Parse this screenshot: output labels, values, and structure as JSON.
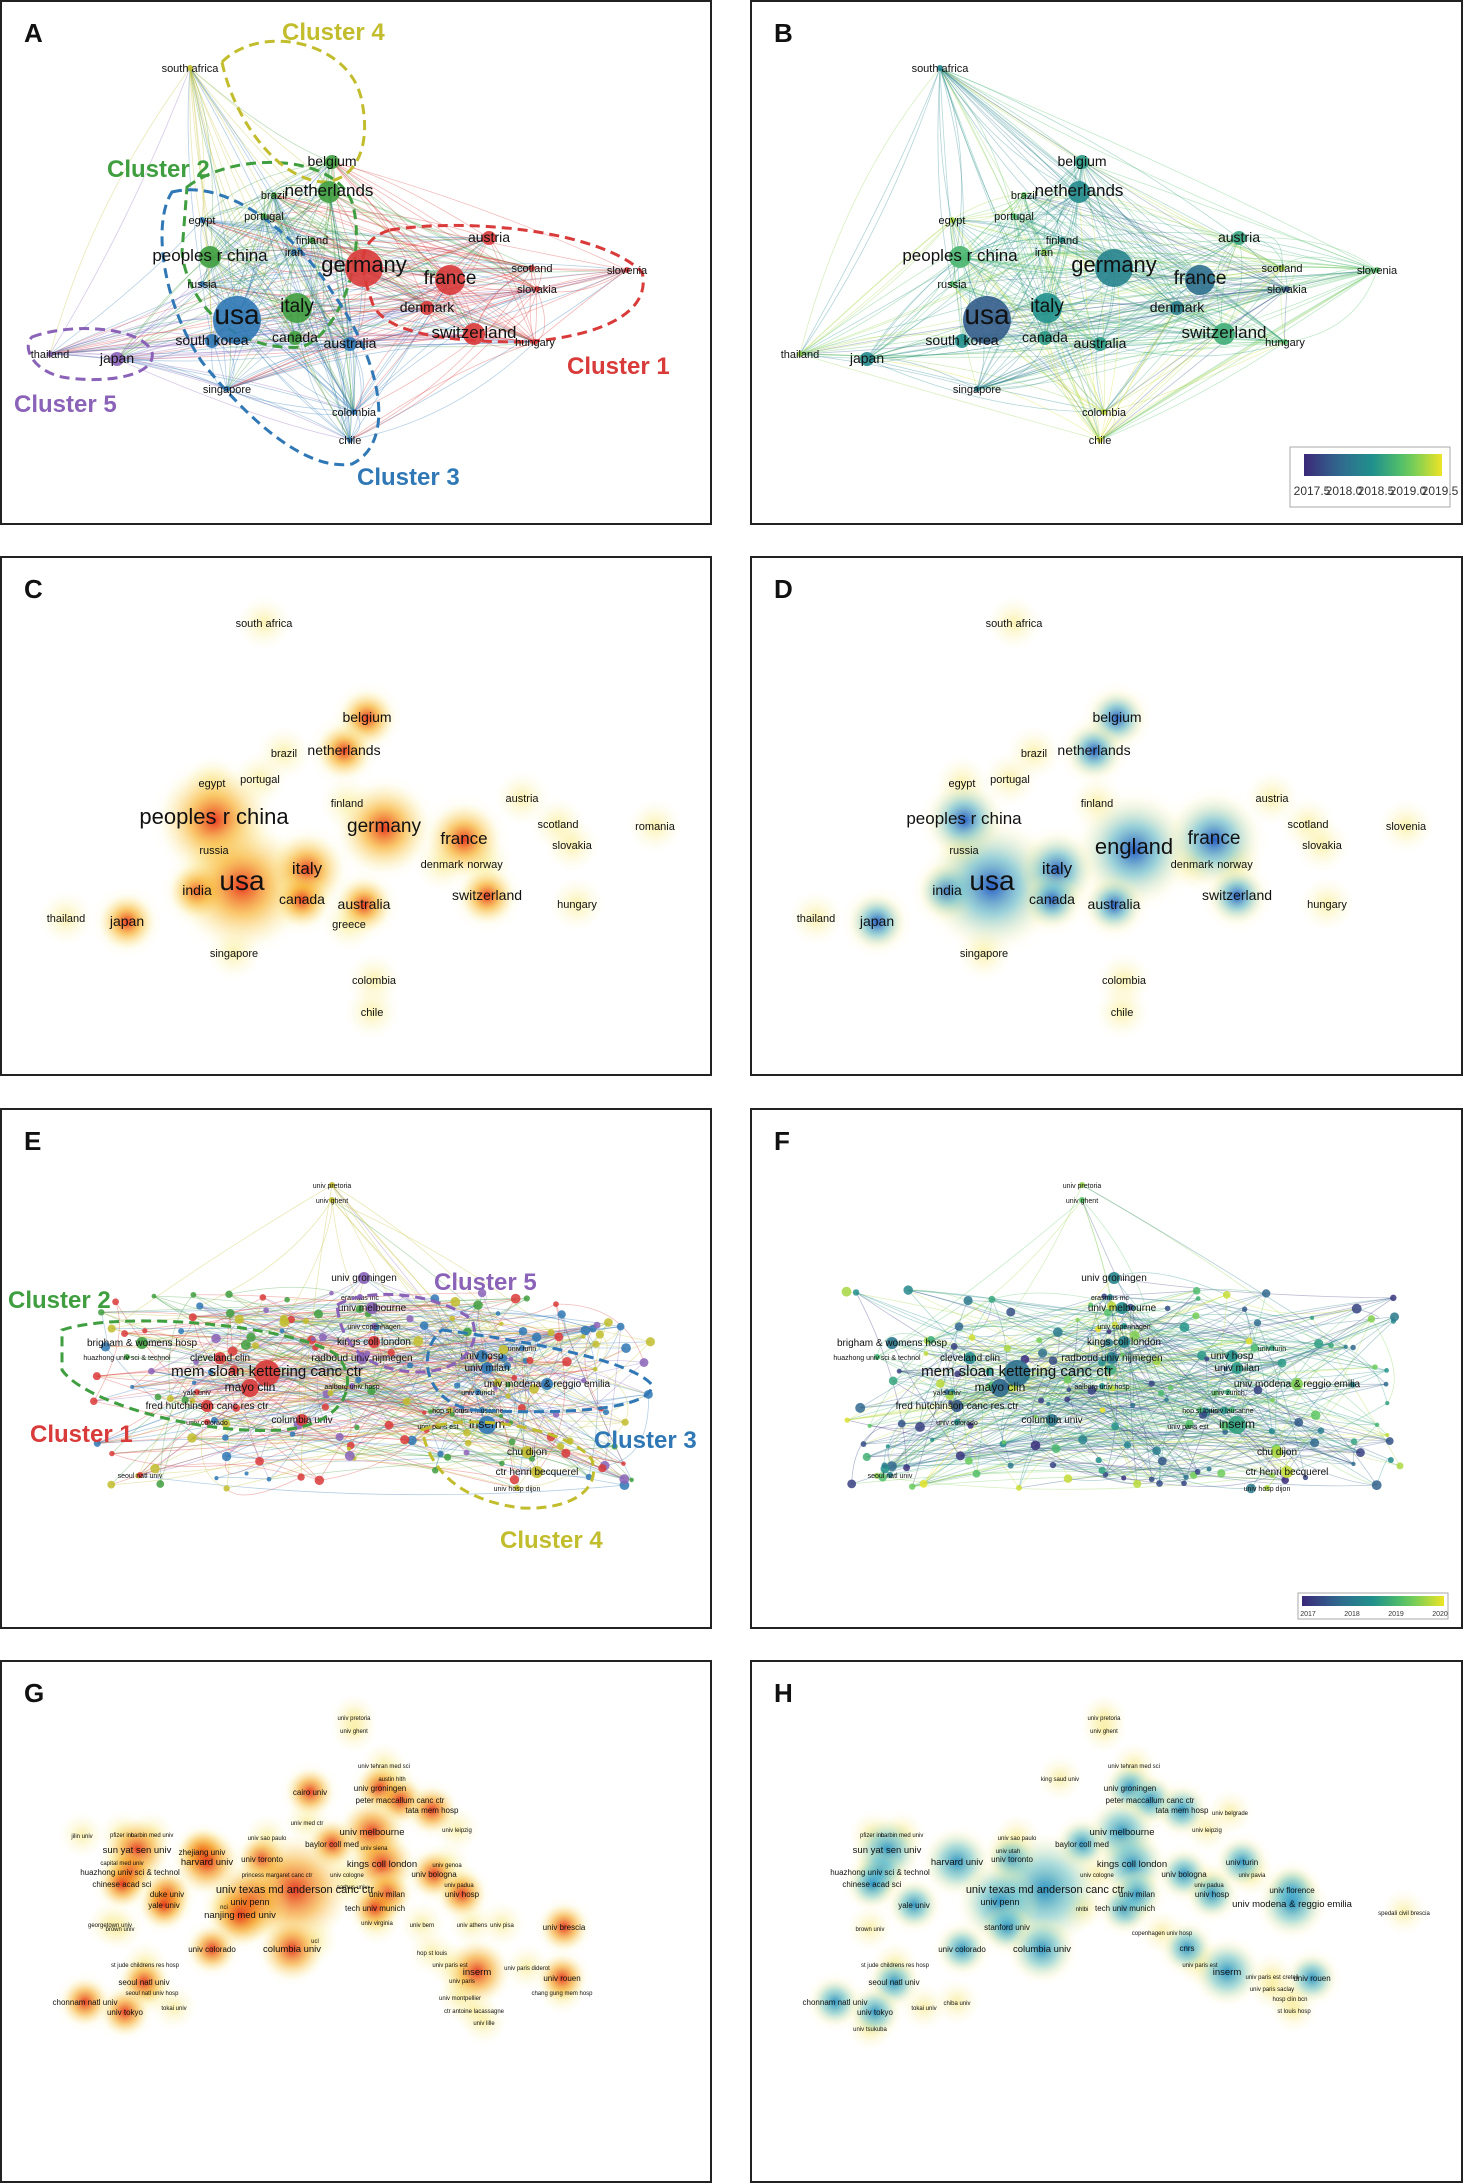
{
  "panels": {
    "A": {
      "label": "A",
      "clusters": [
        "Cluster 1",
        "Cluster 2",
        "Cluster 3",
        "Cluster 4",
        "Cluster 5"
      ]
    },
    "B": {
      "label": "B",
      "colorbar_ticks": [
        "2017.5",
        "2018.0",
        "2018.5",
        "2019.0",
        "2019.5"
      ]
    },
    "C": {
      "label": "C"
    },
    "D": {
      "label": "D"
    },
    "E": {
      "label": "E",
      "clusters": [
        "Cluster 1",
        "Cluster 2",
        "Cluster 3",
        "Cluster 4",
        "Cluster 5"
      ]
    },
    "F": {
      "label": "F",
      "colorbar_ticks": [
        "2017",
        "2018",
        "2019",
        "2020"
      ]
    },
    "G": {
      "label": "G"
    },
    "H": {
      "label": "H"
    }
  },
  "colors": {
    "cluster1": "#d93a3a",
    "cluster2": "#3f9e3f",
    "cluster3": "#2f78b5",
    "cluster4": "#c2bd2d",
    "cluster5": "#8a63b8"
  },
  "country_nodes_AB": [
    {
      "name": "south africa",
      "c": 4,
      "y": 2018.3,
      "s": 1
    },
    {
      "name": "belgium",
      "c": 2,
      "y": 2018.6,
      "s": 2
    },
    {
      "name": "brazil",
      "c": 2,
      "y": 2019.1,
      "s": 1
    },
    {
      "name": "netherlands",
      "c": 2,
      "y": 2018.4,
      "s": 3
    },
    {
      "name": "egypt",
      "c": 3,
      "y": 2019.4,
      "s": 1
    },
    {
      "name": "portugal",
      "c": 2,
      "y": 2019.0,
      "s": 1
    },
    {
      "name": "finland",
      "c": 2,
      "y": 2018.5,
      "s": 1
    },
    {
      "name": "iran",
      "c": 3,
      "y": 2019.3,
      "s": 1
    },
    {
      "name": "peoples r china",
      "c": 2,
      "y": 2018.9,
      "s": 3
    },
    {
      "name": "germany",
      "c": 1,
      "y": 2018.3,
      "s": 5
    },
    {
      "name": "austria",
      "c": 1,
      "y": 2018.7,
      "s": 2
    },
    {
      "name": "russia",
      "c": 3,
      "y": 2019.0,
      "s": 1
    },
    {
      "name": "france",
      "c": 1,
      "y": 2018.0,
      "s": 4
    },
    {
      "name": "scotland",
      "c": 1,
      "y": 2019.4,
      "s": 1
    },
    {
      "name": "slovenia",
      "c": 1,
      "y": 2019.0,
      "s": 1
    },
    {
      "name": "slovakia",
      "c": 1,
      "y": 2017.7,
      "s": 1
    },
    {
      "name": "usa",
      "c": 3,
      "y": 2017.8,
      "s": 6
    },
    {
      "name": "italy",
      "c": 2,
      "y": 2018.5,
      "s": 4
    },
    {
      "name": "denmark",
      "c": 1,
      "y": 2018.2,
      "s": 2
    },
    {
      "name": "canada",
      "c": 2,
      "y": 2018.6,
      "s": 2
    },
    {
      "name": "switzerland",
      "c": 1,
      "y": 2018.8,
      "s": 3
    },
    {
      "name": "hungary",
      "c": 1,
      "y": 2019.0,
      "s": 1
    },
    {
      "name": "thailand",
      "c": 5,
      "y": 2019.3,
      "s": 1
    },
    {
      "name": "japan",
      "c": 5,
      "y": 2018.4,
      "s": 2
    },
    {
      "name": "south korea",
      "c": 3,
      "y": 2018.5,
      "s": 2
    },
    {
      "name": "australia",
      "c": 3,
      "y": 2018.6,
      "s": 2
    },
    {
      "name": "singapore",
      "c": 3,
      "y": 2018.2,
      "s": 1
    },
    {
      "name": "colombia",
      "c": 3,
      "y": 2019.5,
      "s": 1
    },
    {
      "name": "chile",
      "c": 3,
      "y": 2019.6,
      "s": 1
    }
  ],
  "country_density_C": [
    {
      "name": "south africa",
      "d": 1
    },
    {
      "name": "belgium",
      "d": 2
    },
    {
      "name": "brazil",
      "d": 1
    },
    {
      "name": "netherlands",
      "d": 2
    },
    {
      "name": "egypt",
      "d": 1
    },
    {
      "name": "portugal",
      "d": 1
    },
    {
      "name": "finland",
      "d": 1
    },
    {
      "name": "peoples r china",
      "d": 5
    },
    {
      "name": "russia",
      "d": 1
    },
    {
      "name": "germany",
      "d": 4
    },
    {
      "name": "austria",
      "d": 1
    },
    {
      "name": "france",
      "d": 3
    },
    {
      "name": "scotland",
      "d": 1
    },
    {
      "name": "romania",
      "d": 1
    },
    {
      "name": "slovakia",
      "d": 1
    },
    {
      "name": "india",
      "d": 2
    },
    {
      "name": "usa",
      "d": 6
    },
    {
      "name": "italy",
      "d": 3
    },
    {
      "name": "denmark",
      "d": 1
    },
    {
      "name": "norway",
      "d": 1
    },
    {
      "name": "canada",
      "d": 2
    },
    {
      "name": "australia",
      "d": 2
    },
    {
      "name": "greece",
      "d": 1
    },
    {
      "name": "switzerland",
      "d": 2
    },
    {
      "name": "hungary",
      "d": 1
    },
    {
      "name": "thailand",
      "d": 1
    },
    {
      "name": "japan",
      "d": 2
    },
    {
      "name": "singapore",
      "d": 1
    },
    {
      "name": "colombia",
      "d": 1
    },
    {
      "name": "chile",
      "d": 1
    }
  ],
  "country_density_D": [
    {
      "name": "south africa",
      "d": 1
    },
    {
      "name": "belgium",
      "d": 2
    },
    {
      "name": "brazil",
      "d": 1
    },
    {
      "name": "netherlands",
      "d": 2
    },
    {
      "name": "egypt",
      "d": 1
    },
    {
      "name": "portugal",
      "d": 1
    },
    {
      "name": "finland",
      "d": 1
    },
    {
      "name": "peoples r china",
      "d": 3
    },
    {
      "name": "russia",
      "d": 1
    },
    {
      "name": "england",
      "d": 5
    },
    {
      "name": "austria",
      "d": 1
    },
    {
      "name": "france",
      "d": 4
    },
    {
      "name": "scotland",
      "d": 1
    },
    {
      "name": "slovenia",
      "d": 1
    },
    {
      "name": "slovakia",
      "d": 1
    },
    {
      "name": "india",
      "d": 2
    },
    {
      "name": "usa",
      "d": 6
    },
    {
      "name": "italy",
      "d": 3
    },
    {
      "name": "denmark",
      "d": 1
    },
    {
      "name": "norway",
      "d": 1
    },
    {
      "name": "canada",
      "d": 2
    },
    {
      "name": "australia",
      "d": 2
    },
    {
      "name": "switzerland",
      "d": 2
    },
    {
      "name": "hungary",
      "d": 1
    },
    {
      "name": "thailand",
      "d": 1
    },
    {
      "name": "japan",
      "d": 2
    },
    {
      "name": "singapore",
      "d": 1
    },
    {
      "name": "colombia",
      "d": 1
    },
    {
      "name": "chile",
      "d": 1
    }
  ],
  "institutions_EF": [
    {
      "name": "univ pretoria",
      "c": 4,
      "y": 2019.5,
      "s": 1
    },
    {
      "name": "univ ghent",
      "c": 4,
      "y": 2019.2,
      "s": 1
    },
    {
      "name": "univ groningen",
      "c": 5,
      "y": 2018.4,
      "s": 2
    },
    {
      "name": "erasmus mc",
      "c": 5,
      "y": 2018.3,
      "s": 1
    },
    {
      "name": "univ melbourne",
      "c": 5,
      "y": 2018.5,
      "s": 2
    },
    {
      "name": "univ copenhagen",
      "c": 5,
      "y": 2018.6,
      "s": 1
    },
    {
      "name": "kings coll london",
      "c": 1,
      "y": 2018.4,
      "s": 2
    },
    {
      "name": "brigham & womens hosp",
      "c": 2,
      "y": 2018.2,
      "s": 2
    },
    {
      "name": "huazhong univ sci & technol",
      "c": 2,
      "y": 2019.0,
      "s": 1
    },
    {
      "name": "cleveland clin",
      "c": 1,
      "y": 2018.5,
      "s": 2
    },
    {
      "name": "radboud univ nijmegen",
      "c": 5,
      "y": 2018.3,
      "s": 2
    },
    {
      "name": "univ hosp",
      "c": 3,
      "y": 2018.6,
      "s": 2
    },
    {
      "name": "univ turin",
      "c": 3,
      "y": 2018.8,
      "s": 1
    },
    {
      "name": "univ milan",
      "c": 3,
      "y": 2018.7,
      "s": 2
    },
    {
      "name": "mem sloan kettering canc ctr",
      "c": 1,
      "y": 2018.1,
      "s": 4
    },
    {
      "name": "mayo clin",
      "c": 1,
      "y": 2018.0,
      "s": 3
    },
    {
      "name": "aalborg univ hosp",
      "c": 5,
      "y": 2018.6,
      "s": 1
    },
    {
      "name": "univ modena & reggio emilia",
      "c": 3,
      "y": 2019.4,
      "s": 2
    },
    {
      "name": "univ zurich",
      "c": 3,
      "y": 2018.9,
      "s": 1
    },
    {
      "name": "fred hutchinson canc res ctr",
      "c": 1,
      "y": 2017.8,
      "s": 2
    },
    {
      "name": "columbia univ",
      "c": 1,
      "y": 2018.2,
      "s": 2
    },
    {
      "name": "hop st louis",
      "c": 4,
      "y": 2019.0,
      "s": 1
    },
    {
      "name": "univ lausanne",
      "c": 3,
      "y": 2019.0,
      "s": 1
    },
    {
      "name": "univ paris est",
      "c": 4,
      "y": 2019.1,
      "s": 1
    },
    {
      "name": "inserm",
      "c": 3,
      "y": 2018.8,
      "s": 3
    },
    {
      "name": "chu dijon",
      "c": 4,
      "y": 2019.6,
      "s": 2
    },
    {
      "name": "ctr henri becquerel",
      "c": 4,
      "y": 2019.7,
      "s": 2
    },
    {
      "name": "univ hosp dijon",
      "c": 4,
      "y": 2019.6,
      "s": 1
    },
    {
      "name": "yale univ",
      "c": 1,
      "y": 2017.9,
      "s": 1
    },
    {
      "name": "seoul natl univ",
      "c": 1,
      "y": 2018.4,
      "s": 1
    },
    {
      "name": "univ colorado",
      "c": 1,
      "y": 2018.6,
      "s": 1
    }
  ],
  "institutions_G": [
    {
      "name": "univ pretoria",
      "d": 1
    },
    {
      "name": "univ ghent",
      "d": 1
    },
    {
      "name": "univ tehran med sci",
      "d": 1
    },
    {
      "name": "austin hlth",
      "d": 1
    },
    {
      "name": "cairo univ",
      "d": 2
    },
    {
      "name": "univ groningen",
      "d": 2
    },
    {
      "name": "peter maccallum canc ctr",
      "d": 2
    },
    {
      "name": "tata mem hosp",
      "d": 2
    },
    {
      "name": "univ med ctr",
      "d": 1
    },
    {
      "name": "univ leipzig",
      "d": 1
    },
    {
      "name": "jilin univ",
      "d": 1
    },
    {
      "name": "pfizer inc",
      "d": 1
    },
    {
      "name": "harbin med univ",
      "d": 1
    },
    {
      "name": "univ sao paulo",
      "d": 1
    },
    {
      "name": "univ melbourne",
      "d": 3
    },
    {
      "name": "baylor coll med",
      "d": 2
    },
    {
      "name": "univ siena",
      "d": 1
    },
    {
      "name": "sun yat sen univ",
      "d": 3
    },
    {
      "name": "zhejiang univ",
      "d": 2
    },
    {
      "name": "univ toronto",
      "d": 2
    },
    {
      "name": "capital med univ",
      "d": 1
    },
    {
      "name": "harvard univ",
      "d": 3
    },
    {
      "name": "kings coll london",
      "d": 3
    },
    {
      "name": "univ bologna",
      "d": 2
    },
    {
      "name": "univ genoa",
      "d": 1
    },
    {
      "name": "huazhong univ sci & technol",
      "d": 2
    },
    {
      "name": "univ padua",
      "d": 1
    },
    {
      "name": "chinese acad sci",
      "d": 2
    },
    {
      "name": "princess margaret canc ctr",
      "d": 1
    },
    {
      "name": "univ cologne",
      "d": 1
    },
    {
      "name": "aarhus univ",
      "d": 1
    },
    {
      "name": "univ milan",
      "d": 2
    },
    {
      "name": "univ texas md anderson canc ctr",
      "d": 6
    },
    {
      "name": "univ hosp",
      "d": 2
    },
    {
      "name": "duke univ",
      "d": 2
    },
    {
      "name": "univ penn",
      "d": 4
    },
    {
      "name": "nci",
      "d": 1
    },
    {
      "name": "tech univ munich",
      "d": 2
    },
    {
      "name": "yale univ",
      "d": 2
    },
    {
      "name": "nanjing med univ",
      "d": 3
    },
    {
      "name": "univ virginia",
      "d": 1
    },
    {
      "name": "univ bern",
      "d": 1
    },
    {
      "name": "univ athens",
      "d": 1
    },
    {
      "name": "univ pisa",
      "d": 1
    },
    {
      "name": "univ brescia",
      "d": 2
    },
    {
      "name": "georgetown univ",
      "d": 1
    },
    {
      "name": "brown univ",
      "d": 1
    },
    {
      "name": "ucl",
      "d": 1
    },
    {
      "name": "hop st louis",
      "d": 1
    },
    {
      "name": "univ colorado",
      "d": 2
    },
    {
      "name": "columbia univ",
      "d": 3
    },
    {
      "name": "univ paris est",
      "d": 1
    },
    {
      "name": "inserm",
      "d": 3
    },
    {
      "name": "univ paris",
      "d": 1
    },
    {
      "name": "st jude childrens res hosp",
      "d": 1
    },
    {
      "name": "univ paris diderot",
      "d": 1
    },
    {
      "name": "univ rouen",
      "d": 2
    },
    {
      "name": "seoul natl univ",
      "d": 2
    },
    {
      "name": "seoul natl univ hosp",
      "d": 1
    },
    {
      "name": "chonnam natl univ",
      "d": 2
    },
    {
      "name": "univ tokyo",
      "d": 2
    },
    {
      "name": "tokai univ",
      "d": 1
    },
    {
      "name": "univ montpellier",
      "d": 1
    },
    {
      "name": "chang gung mem hosp",
      "d": 1
    },
    {
      "name": "ctr antoine lacassagne",
      "d": 1
    },
    {
      "name": "univ lille",
      "d": 1
    }
  ],
  "institutions_H": [
    {
      "name": "univ pretoria",
      "d": 1
    },
    {
      "name": "univ ghent",
      "d": 1
    },
    {
      "name": "univ tehran med sci",
      "d": 1
    },
    {
      "name": "king saud univ",
      "d": 1
    },
    {
      "name": "univ groningen",
      "d": 2
    },
    {
      "name": "peter maccallum canc ctr",
      "d": 2
    },
    {
      "name": "tata mem hosp",
      "d": 2
    },
    {
      "name": "univ belgrade",
      "d": 1
    },
    {
      "name": "univ leipzig",
      "d": 1
    },
    {
      "name": "pfizer inc",
      "d": 1
    },
    {
      "name": "harbin med univ",
      "d": 1
    },
    {
      "name": "univ sao paulo",
      "d": 1
    },
    {
      "name": "univ melbourne",
      "d": 3
    },
    {
      "name": "baylor coll med",
      "d": 2
    },
    {
      "name": "sun yat sen univ",
      "d": 3
    },
    {
      "name": "univ utah",
      "d": 1
    },
    {
      "name": "univ toronto",
      "d": 2
    },
    {
      "name": "harvard univ",
      "d": 3
    },
    {
      "name": "kings coll london",
      "d": 3
    },
    {
      "name": "univ turin",
      "d": 2
    },
    {
      "name": "univ pavia",
      "d": 1
    },
    {
      "name": "huazhong univ sci & technol",
      "d": 2
    },
    {
      "name": "univ padua",
      "d": 1
    },
    {
      "name": "chinese acad sci",
      "d": 2
    },
    {
      "name": "univ cologne",
      "d": 1
    },
    {
      "name": "univ bologna",
      "d": 2
    },
    {
      "name": "univ florence",
      "d": 2
    },
    {
      "name": "univ texas md anderson canc ctr",
      "d": 6
    },
    {
      "name": "univ hosp",
      "d": 2
    },
    {
      "name": "univ modena & reggio emilia",
      "d": 3
    },
    {
      "name": "yale univ",
      "d": 2
    },
    {
      "name": "univ penn",
      "d": 4
    },
    {
      "name": "nhlbi",
      "d": 1
    },
    {
      "name": "tech univ munich",
      "d": 2
    },
    {
      "name": "univ milan",
      "d": 2
    },
    {
      "name": "stanford univ",
      "d": 2
    },
    {
      "name": "brown univ",
      "d": 1
    },
    {
      "name": "copenhagen univ hosp",
      "d": 1
    },
    {
      "name": "cnrs",
      "d": 2
    },
    {
      "name": "spedali civil brescia",
      "d": 1
    },
    {
      "name": "univ colorado",
      "d": 2
    },
    {
      "name": "columbia univ",
      "d": 3
    },
    {
      "name": "univ paris est",
      "d": 1
    },
    {
      "name": "inserm",
      "d": 3
    },
    {
      "name": "univ paris est creteil",
      "d": 1
    },
    {
      "name": "univ paris saclay",
      "d": 1
    },
    {
      "name": "univ rouen",
      "d": 2
    },
    {
      "name": "st jude childrens res hosp",
      "d": 1
    },
    {
      "name": "hosp clin bcn",
      "d": 1
    },
    {
      "name": "st louis hosp",
      "d": 1
    },
    {
      "name": "seoul natl univ",
      "d": 2
    },
    {
      "name": "chonnam natl univ",
      "d": 2
    },
    {
      "name": "univ tokyo",
      "d": 2
    },
    {
      "name": "univ tsukuba",
      "d": 1
    },
    {
      "name": "tokai univ",
      "d": 1
    },
    {
      "name": "chiba univ",
      "d": 1
    }
  ]
}
